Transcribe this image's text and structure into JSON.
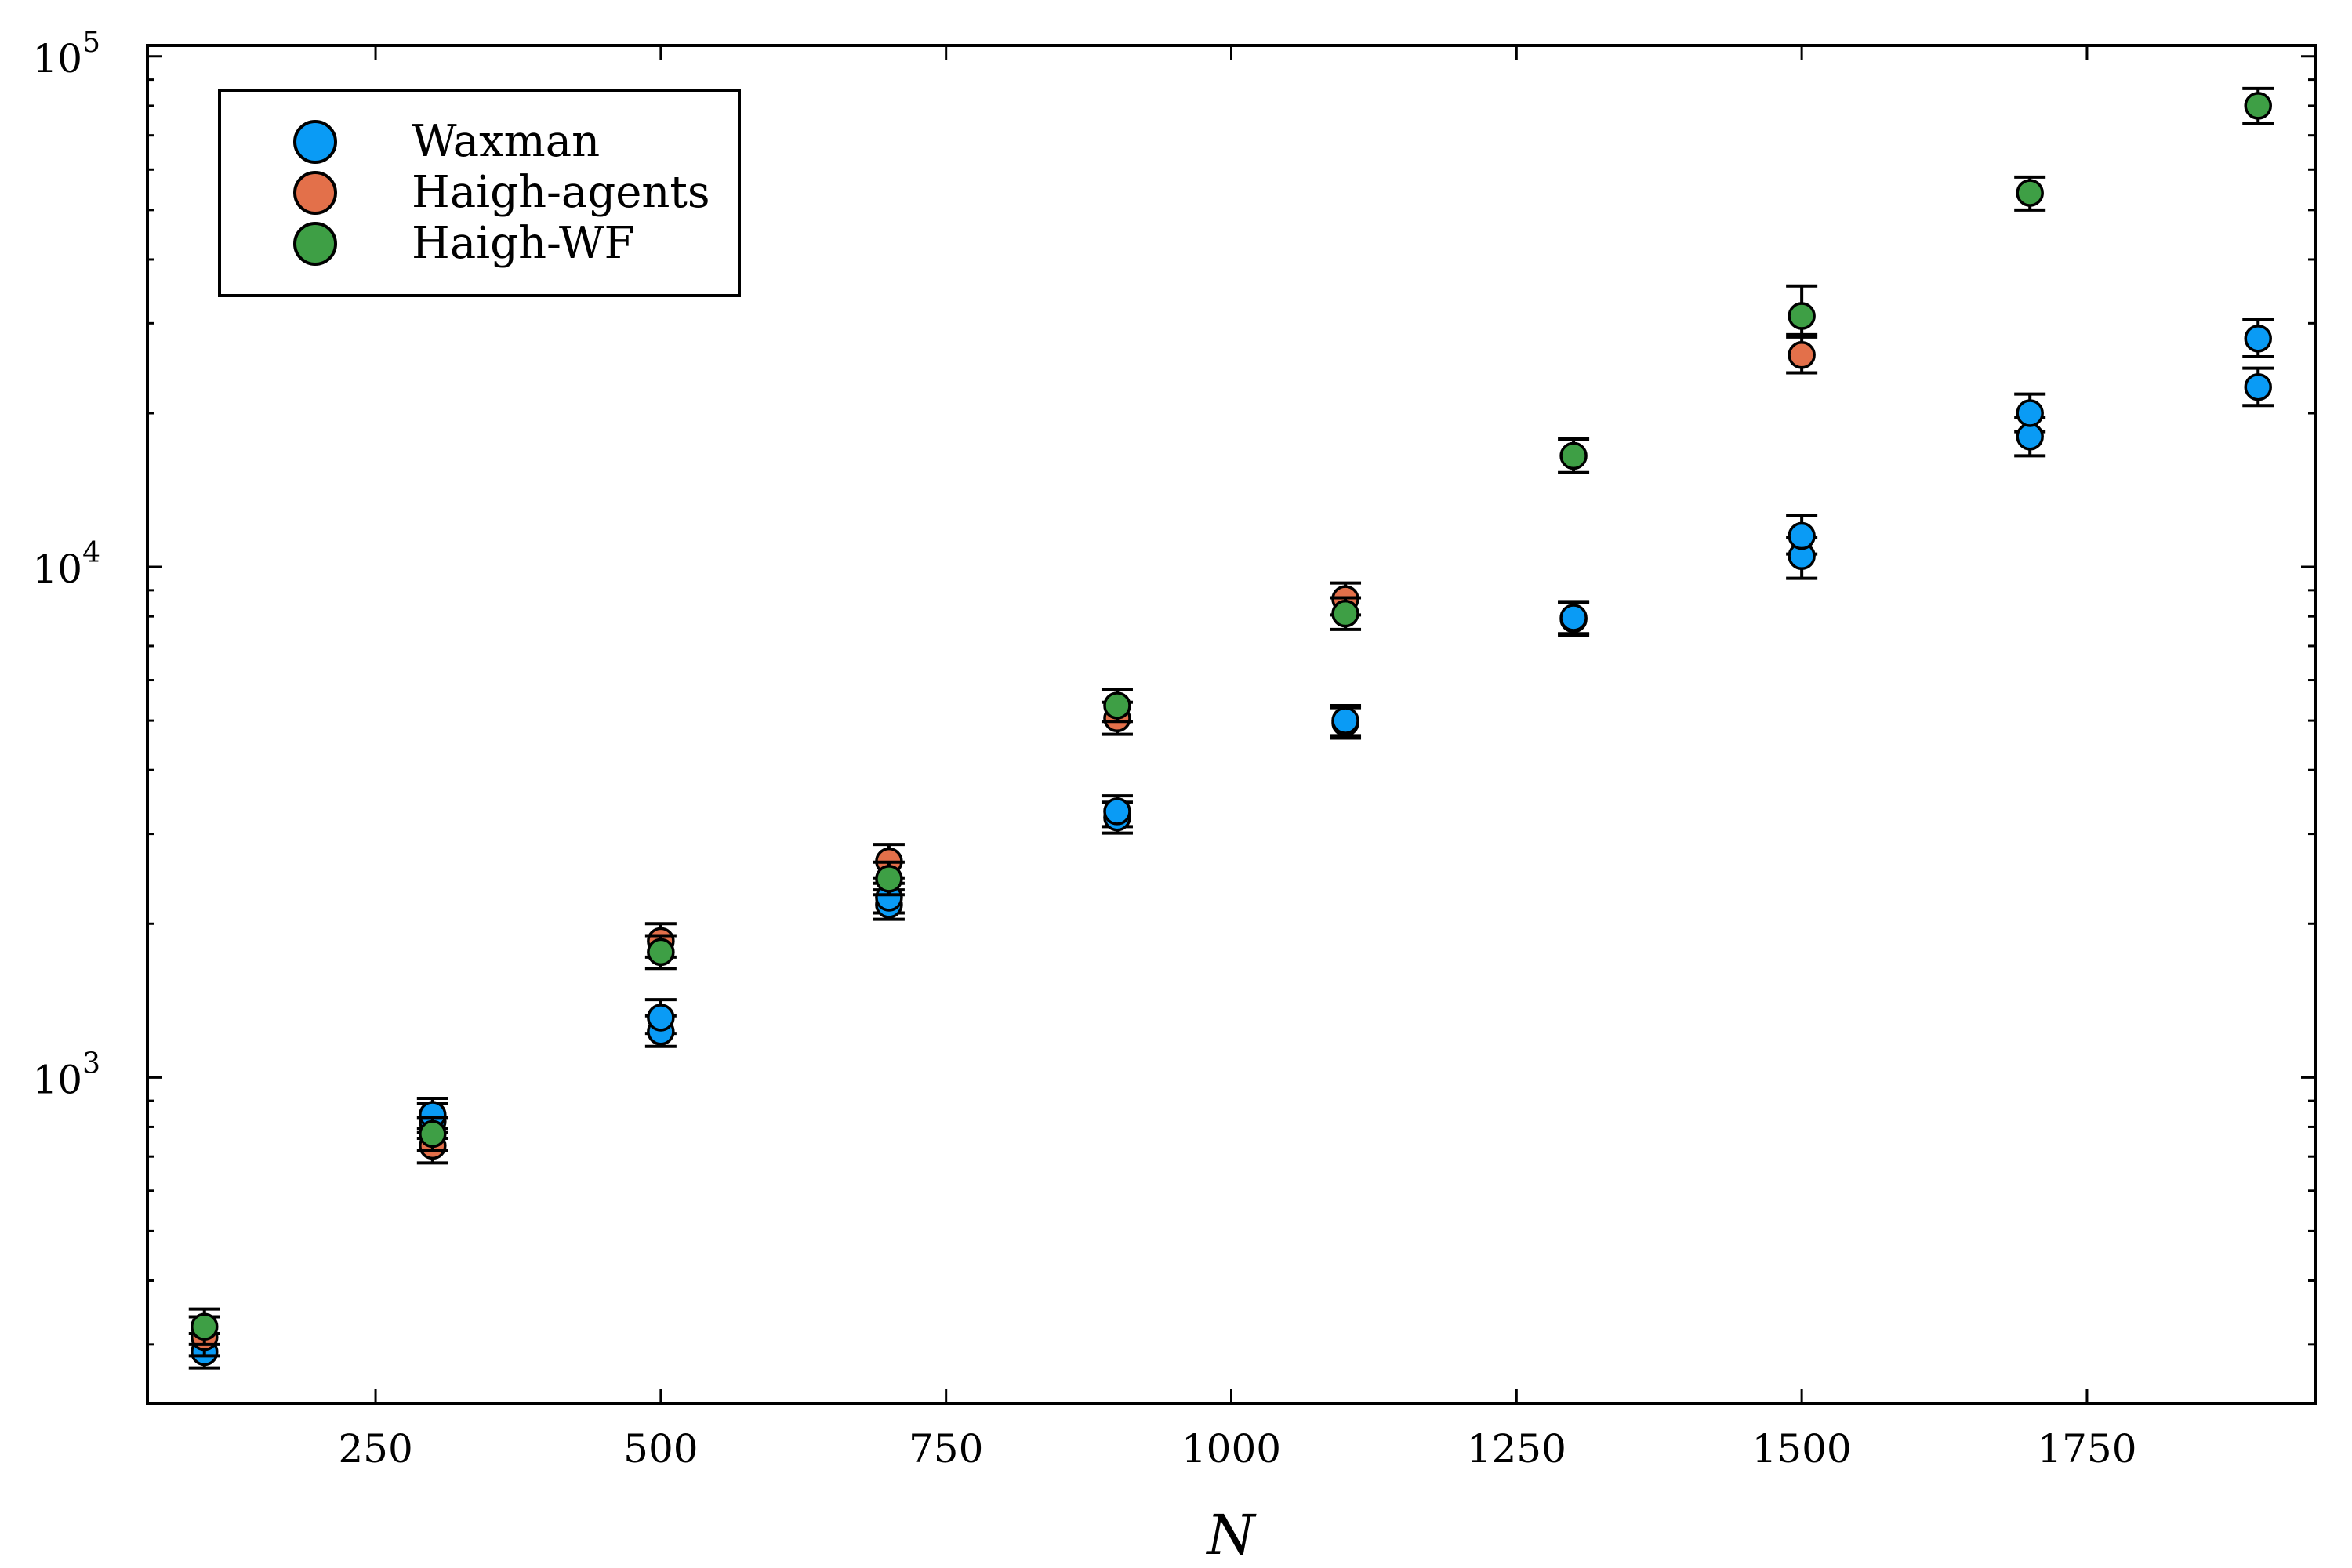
{
  "chart_data": {
    "type": "scatter",
    "title": "",
    "xlabel": "N",
    "ylabel": "",
    "xlim": [
      50,
      1950
    ],
    "ylim": [
      230,
      105000
    ],
    "yscale": "log",
    "grid": false,
    "legend_position": "top-left",
    "x_ticks": [
      250,
      500,
      750,
      1000,
      1250,
      1500,
      1750
    ],
    "y_ticks": [
      {
        "value": 1000,
        "base": "10",
        "exp": "3"
      },
      {
        "value": 10000,
        "base": "10",
        "exp": "4"
      },
      {
        "value": 100000,
        "base": "10",
        "exp": "5"
      }
    ],
    "series": [
      {
        "name": "Waxman",
        "color": "#0a9bf5",
        "points": [
          {
            "x": 100,
            "y": 290,
            "lo": 270,
            "hi": 315
          },
          {
            "x": 300,
            "y": 820,
            "lo": 760,
            "hi": 890
          },
          {
            "x": 300,
            "y": 845,
            "lo": 780,
            "hi": 910
          },
          {
            "x": 500,
            "y": 1230,
            "lo": 1150,
            "hi": 1320
          },
          {
            "x": 500,
            "y": 1310,
            "lo": 1220,
            "hi": 1420
          },
          {
            "x": 700,
            "y": 2180,
            "lo": 2040,
            "hi": 2330
          },
          {
            "x": 700,
            "y": 2250,
            "lo": 2100,
            "hi": 2400
          },
          {
            "x": 900,
            "y": 3230,
            "lo": 3010,
            "hi": 3460
          },
          {
            "x": 900,
            "y": 3320,
            "lo": 3100,
            "hi": 3560
          },
          {
            "x": 1100,
            "y": 4950,
            "lo": 4620,
            "hi": 5300
          },
          {
            "x": 1100,
            "y": 5000,
            "lo": 4670,
            "hi": 5350
          },
          {
            "x": 1300,
            "y": 7900,
            "lo": 7350,
            "hi": 8500
          },
          {
            "x": 1300,
            "y": 7950,
            "lo": 7400,
            "hi": 8550
          },
          {
            "x": 1500,
            "y": 10500,
            "lo": 9500,
            "hi": 11400
          },
          {
            "x": 1500,
            "y": 11500,
            "lo": 10600,
            "hi": 12600
          },
          {
            "x": 1700,
            "y": 18000,
            "lo": 16500,
            "hi": 19600
          },
          {
            "x": 1700,
            "y": 20000,
            "lo": 18400,
            "hi": 21800
          },
          {
            "x": 1900,
            "y": 22500,
            "lo": 20700,
            "hi": 24500
          },
          {
            "x": 1900,
            "y": 28000,
            "lo": 25800,
            "hi": 30500
          }
        ]
      },
      {
        "name": "Haigh-agents",
        "color": "#e3704a",
        "points": [
          {
            "x": 100,
            "y": 310,
            "lo": 285,
            "hi": 340
          },
          {
            "x": 300,
            "y": 735,
            "lo": 680,
            "hi": 795
          },
          {
            "x": 500,
            "y": 1850,
            "lo": 1720,
            "hi": 2000
          },
          {
            "x": 700,
            "y": 2650,
            "lo": 2460,
            "hi": 2860
          },
          {
            "x": 900,
            "y": 5050,
            "lo": 4700,
            "hi": 5430
          },
          {
            "x": 1100,
            "y": 8650,
            "lo": 8050,
            "hi": 9300
          },
          {
            "x": 1500,
            "y": 26000,
            "lo": 24000,
            "hi": 28200
          }
        ]
      },
      {
        "name": "Haigh-WF",
        "color": "#3e9f45",
        "points": [
          {
            "x": 100,
            "y": 325,
            "lo": 300,
            "hi": 352
          },
          {
            "x": 300,
            "y": 775,
            "lo": 718,
            "hi": 835
          },
          {
            "x": 500,
            "y": 1760,
            "lo": 1635,
            "hi": 1895
          },
          {
            "x": 700,
            "y": 2450,
            "lo": 2280,
            "hi": 2640
          },
          {
            "x": 900,
            "y": 5350,
            "lo": 4980,
            "hi": 5750
          },
          {
            "x": 1100,
            "y": 8100,
            "lo": 7540,
            "hi": 8700
          },
          {
            "x": 1300,
            "y": 16500,
            "lo": 15300,
            "hi": 17800
          },
          {
            "x": 1500,
            "y": 31000,
            "lo": 28500,
            "hi": 35500
          },
          {
            "x": 1700,
            "y": 54000,
            "lo": 50000,
            "hi": 58000
          },
          {
            "x": 1900,
            "y": 80000,
            "lo": 74000,
            "hi": 86500
          }
        ]
      }
    ]
  }
}
